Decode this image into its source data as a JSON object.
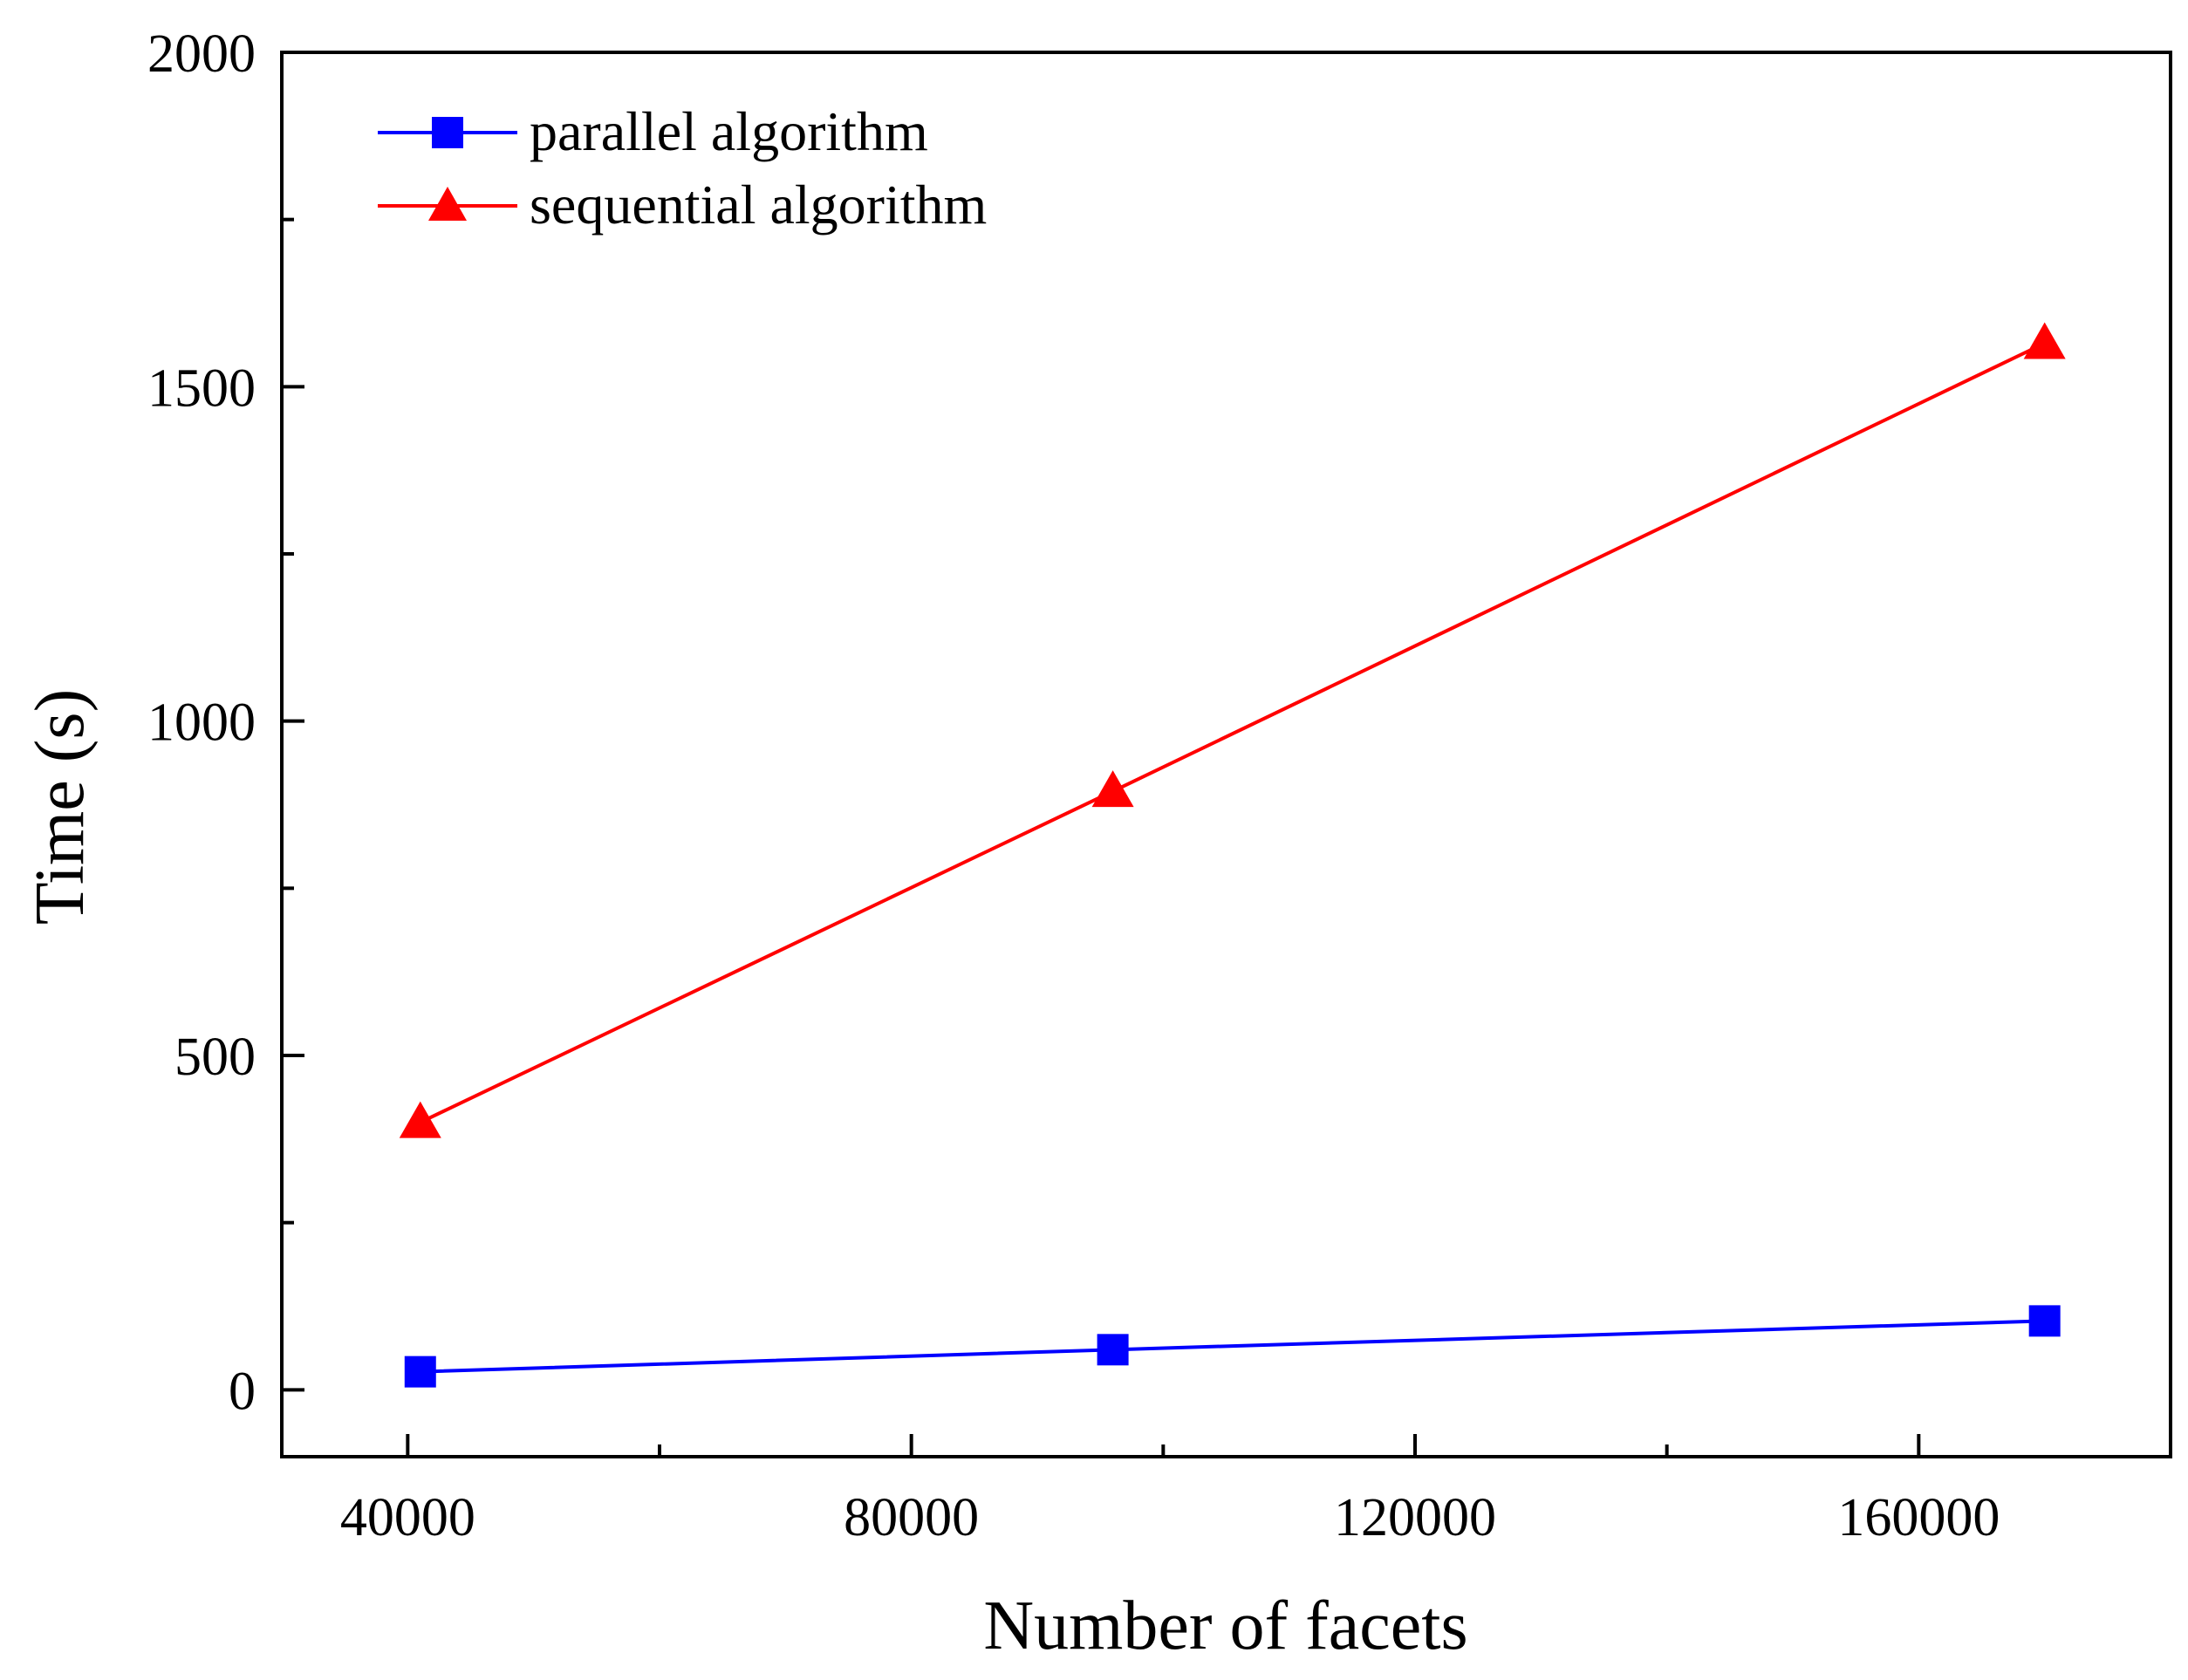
{
  "chart_data": {
    "type": "line",
    "title": "",
    "xlabel": "Number of facets",
    "ylabel": "Time (s)",
    "xlim": [
      30000,
      180000
    ],
    "ylim": [
      -100,
      2000
    ],
    "xticks": [
      40000,
      80000,
      120000,
      160000
    ],
    "xminor": [
      60000,
      100000,
      140000
    ],
    "yticks": [
      0,
      500,
      1000,
      1500,
      2000
    ],
    "yminor": [
      250,
      750,
      1250,
      1750
    ],
    "grid": false,
    "legend_position": "top-left",
    "series": [
      {
        "name": "parallel algorithm",
        "color": "#0000ff",
        "marker": "square",
        "x": [
          41000,
          96000,
          170000
        ],
        "y": [
          27,
          60,
          103
        ]
      },
      {
        "name": "sequential algorithm",
        "color": "#ff0000",
        "marker": "triangle",
        "x": [
          41000,
          96000,
          170000
        ],
        "y": [
          400,
          895,
          1565
        ]
      }
    ]
  }
}
